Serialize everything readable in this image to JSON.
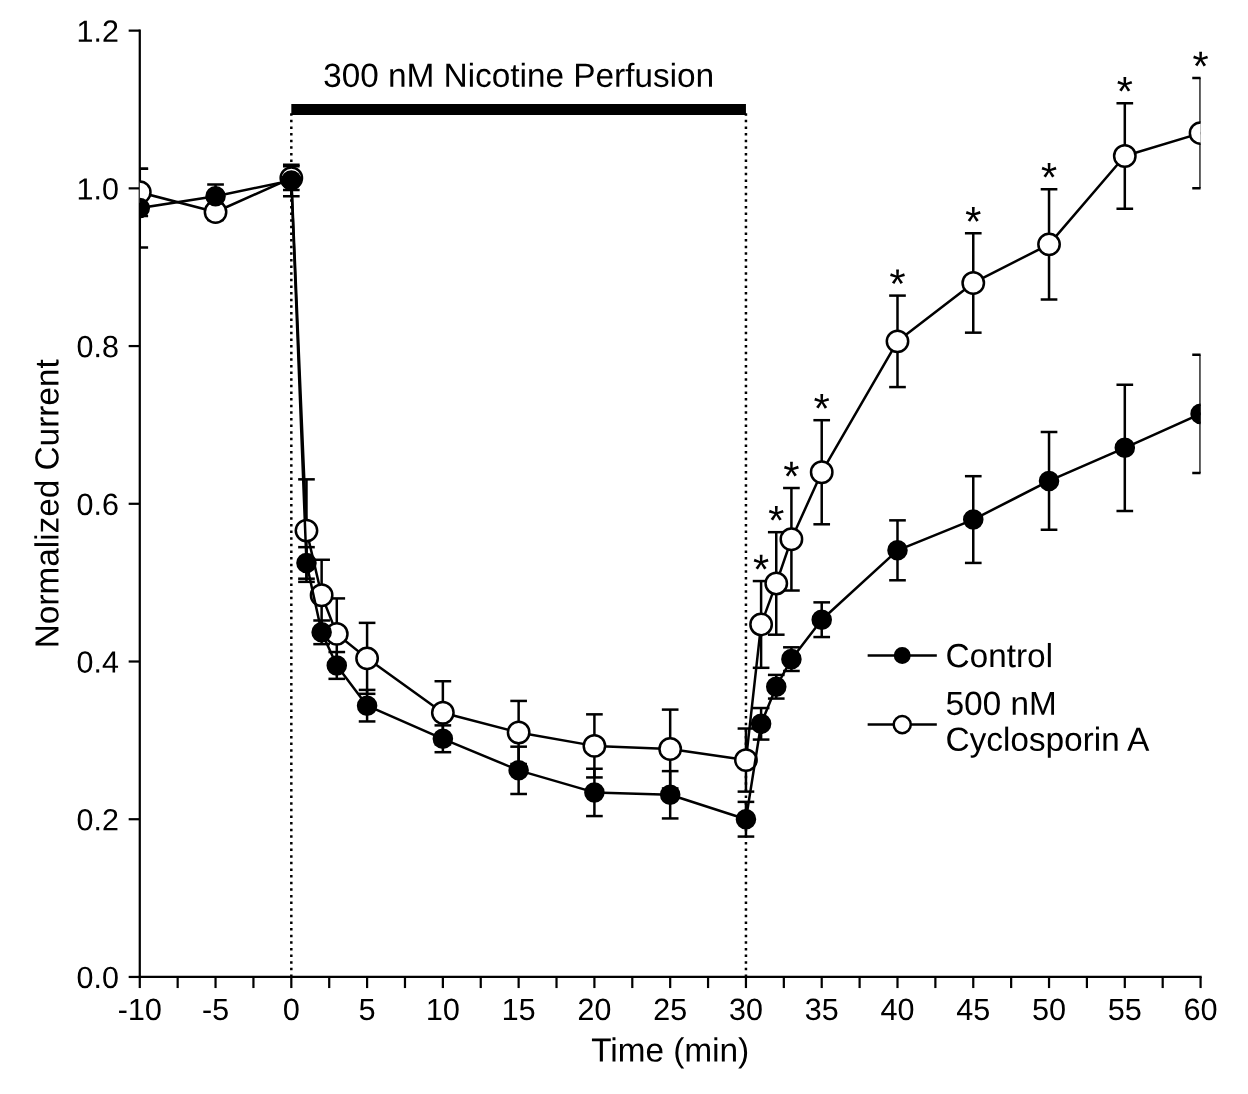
{
  "chart_data": {
    "type": "line",
    "xlabel": "Time (min)",
    "ylabel": "Normalized Current",
    "x": [
      -10,
      -5,
      0,
      1,
      2,
      3,
      5,
      10,
      15,
      20,
      25,
      30,
      31,
      32,
      33,
      35,
      40,
      45,
      50,
      55,
      60
    ],
    "series": [
      {
        "name": "Control",
        "color": "#000000",
        "values": [
          0.975,
          0.99,
          1.01,
          0.525,
          0.437,
          0.395,
          0.344,
          0.302,
          0.262,
          0.234,
          0.231,
          0.2,
          0.321,
          0.368,
          0.403,
          0.453,
          0.541,
          0.58,
          0.629,
          0.671,
          0.714
        ],
        "errors": [
          0.05,
          0.015,
          0.02,
          0.02,
          0.015,
          0.017,
          0.02,
          0.017,
          0.03,
          0.03,
          0.03,
          0.022,
          0.02,
          0.015,
          0.015,
          0.022,
          0.038,
          0.055,
          0.062,
          0.08,
          0.075
        ]
      },
      {
        "name": "500 nM\nCyclosporin A",
        "color": "#ffffff",
        "values": [
          0.995,
          0.97,
          1.013,
          0.566,
          0.484,
          0.435,
          0.404,
          0.335,
          0.31,
          0.293,
          0.289,
          0.275,
          0.447,
          0.499,
          0.555,
          0.64,
          0.806,
          0.88,
          0.929,
          1.041,
          1.07
        ],
        "errors": [
          0.03,
          0.01,
          0.015,
          0.065,
          0.045,
          0.045,
          0.045,
          0.04,
          0.04,
          0.04,
          0.05,
          0.04,
          0.055,
          0.065,
          0.065,
          0.066,
          0.058,
          0.063,
          0.07,
          0.067,
          0.07
        ]
      }
    ],
    "annotations": [
      "300 nM Nicotine Perfusion",
      {
        "text": "*",
        "x": 31,
        "y": 0.502
      },
      {
        "text": "*",
        "x": 32,
        "y": 0.564
      },
      {
        "text": "*",
        "x": 33,
        "y": 0.62
      },
      {
        "text": "*",
        "x": 35,
        "y": 0.706
      },
      {
        "text": "*",
        "x": 40,
        "y": 0.864
      },
      {
        "text": "*",
        "x": 45,
        "y": 0.943
      },
      {
        "text": "*",
        "x": 50,
        "y": 0.999
      },
      {
        "text": "*",
        "x": 55,
        "y": 1.108
      },
      {
        "text": "*",
        "x": 60,
        "y": 1.14
      }
    ],
    "ref_lines": [
      {
        "axis": "x",
        "value": 0,
        "color": "#000000",
        "line_style": "dotted"
      },
      {
        "axis": "x",
        "value": 30,
        "color": "#000000",
        "line_style": "dotted"
      }
    ],
    "xlim": [
      -10,
      60
    ],
    "ylim": [
      0,
      1.2
    ],
    "xticks": [
      -10,
      {
        "value": -7.5,
        "label": null
      },
      -5,
      {
        "value": -2.5,
        "label": null
      },
      0,
      {
        "value": 2.5,
        "label": null
      },
      5,
      {
        "value": 7.5,
        "label": null
      },
      10,
      {
        "value": 12.5,
        "label": null
      },
      15,
      {
        "value": 17.5,
        "label": null
      },
      20,
      {
        "value": 22.5,
        "label": null
      },
      25,
      {
        "value": 27.5,
        "label": null
      },
      30,
      {
        "value": 32.5,
        "label": null
      },
      35,
      {
        "value": 37.5,
        "label": null
      },
      40,
      {
        "value": 42.5,
        "label": null
      },
      45,
      {
        "value": 47.5,
        "label": null
      },
      50,
      {
        "value": 52.5,
        "label": null
      },
      55,
      {
        "value": 57.5,
        "label": null
      },
      60
    ],
    "yticks": [
      {
        "value": 0,
        "label": "0.0"
      },
      {
        "value": 0.2,
        "label": "0.2"
      },
      {
        "value": 0.4,
        "label": "0.4"
      },
      {
        "value": 0.6,
        "label": "0.6"
      },
      {
        "value": 0.8,
        "label": "0.8"
      },
      {
        "value": 1.0,
        "label": "1.0"
      },
      {
        "value": 1.2,
        "label": "1.2"
      }
    ],
    "marker": "circle",
    "line_style": "solid",
    "legend": "bottom right",
    "grid": false
  }
}
